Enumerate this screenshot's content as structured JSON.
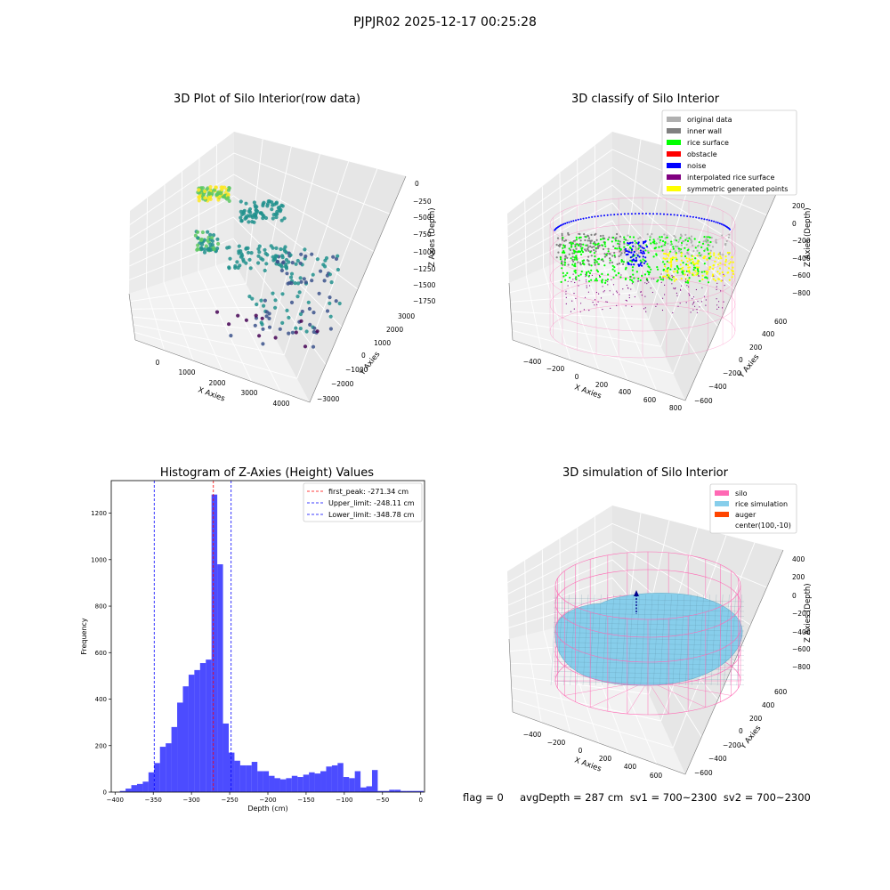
{
  "suptitle": "PJPJR02 2025-12-17 00:25:28",
  "footer": {
    "text": "flag = 0     avgDepth = 287 cm  sv1 = 700~2300  sv2 = 700~2300"
  },
  "chart_data": [
    {
      "type": "scatter",
      "projection": "3d",
      "title": "3D Plot of Silo Interior(row data)",
      "xlabel": "X Axies",
      "ylabel": "Y Axies",
      "zlabel": "Z Axies (Depth)",
      "xticks": [
        "0",
        "1000",
        "2000",
        "3000",
        "4000"
      ],
      "yticks": [
        "3000",
        "2000",
        "1000",
        "0",
        "−1000",
        "−2000",
        "−3000"
      ],
      "zticks": [
        "0",
        "−250",
        "−500",
        "−750",
        "−1000",
        "−1250",
        "−1500",
        "−1750"
      ],
      "colormap": "viridis",
      "grid": true
    },
    {
      "type": "scatter",
      "projection": "3d",
      "title": "3D classify of Silo Interior",
      "xlabel": "X Axies",
      "ylabel": "Y Axies",
      "zlabel": "Z Axies (Depth)",
      "xticks": [
        "−400",
        "−200",
        "0",
        "200",
        "400",
        "600",
        "800"
      ],
      "yticks": [
        "600",
        "400",
        "200",
        "0",
        "−200",
        "−400",
        "−600"
      ],
      "zticks": [
        "200",
        "0",
        "−200",
        "−400",
        "−600",
        "−800"
      ],
      "legend": {
        "position": "top-right",
        "items": [
          {
            "label": "original data",
            "color": "#b0b0b0"
          },
          {
            "label": "inner wall",
            "color": "#808080"
          },
          {
            "label": "rice surface",
            "color": "#00ff00"
          },
          {
            "label": "obstacle",
            "color": "#ff0000"
          },
          {
            "label": "noise",
            "color": "#0000ff"
          },
          {
            "label": "interpolated rice surface",
            "color": "#800080"
          },
          {
            "label": "symmetric generated points",
            "color": "#ffff00"
          }
        ]
      },
      "grid": true
    },
    {
      "type": "bar",
      "title": "Histogram of Z-Axies (Height) Values",
      "xlabel": "Depth (cm)",
      "ylabel": "Frequency",
      "xlim": [
        -405,
        5
      ],
      "ylim": [
        0,
        1340
      ],
      "xticks": [
        -400,
        -350,
        -300,
        -250,
        -200,
        -150,
        -100,
        -50,
        0
      ],
      "yticks": [
        0,
        200,
        400,
        600,
        800,
        1000,
        1200
      ],
      "bin_width": 7.5,
      "bin_starts": [
        -393.75,
        -386.25,
        -378.75,
        -371.25,
        -363.75,
        -356.25,
        -348.75,
        -341.25,
        -333.75,
        -326.25,
        -318.75,
        -311.25,
        -303.75,
        -296.25,
        -288.75,
        -281.25,
        -273.75,
        -266.25,
        -258.75,
        -251.25,
        -243.75,
        -236.25,
        -228.75,
        -221.25,
        -213.75,
        -206.25,
        -198.75,
        -191.25,
        -183.75,
        -176.25,
        -168.75,
        -161.25,
        -153.75,
        -146.25,
        -138.75,
        -131.25,
        -123.75,
        -116.25,
        -108.75,
        -101.25,
        -93.75,
        -86.25,
        -78.75,
        -71.25,
        -63.75,
        -56.25,
        -48.75,
        -41.25,
        -33.75,
        -26.25,
        -18.75,
        -11.25,
        -3.75
      ],
      "values": [
        5,
        15,
        30,
        35,
        45,
        85,
        125,
        195,
        210,
        280,
        385,
        455,
        505,
        525,
        555,
        570,
        1280,
        980,
        295,
        170,
        135,
        115,
        115,
        130,
        90,
        90,
        70,
        60,
        55,
        60,
        70,
        65,
        75,
        85,
        80,
        90,
        110,
        115,
        125,
        65,
        60,
        90,
        20,
        25,
        95,
        5,
        5,
        10,
        10,
        5,
        5,
        5,
        5
      ],
      "color": "#0000ff",
      "vlines": [
        {
          "label": "first_peak: -271.34 cm",
          "x": -271.34,
          "color": "#ff0000"
        },
        {
          "label": "Upper_limit: -248.11 cm",
          "x": -248.11,
          "color": "#0000ff"
        },
        {
          "label": "Lower_limit: -348.78 cm",
          "x": -348.78,
          "color": "#0000ff"
        }
      ],
      "legend": "top-right",
      "grid": false
    },
    {
      "type": "surface",
      "projection": "3d",
      "title": "3D simulation of Silo Interior",
      "xlabel": "X Axies",
      "ylabel": "Y Axies",
      "zlabel": "Z Axies (Depth)",
      "xticks": [
        "−400",
        "−200",
        "0",
        "200",
        "400",
        "600"
      ],
      "yticks": [
        "600",
        "400",
        "200",
        "0",
        "−200",
        "−400",
        "−600"
      ],
      "zticks": [
        "400",
        "200",
        "0",
        "−200",
        "−400",
        "−600",
        "−800"
      ],
      "legend": {
        "position": "top-right",
        "items": [
          {
            "label": "silo",
            "color": "#ff69b4"
          },
          {
            "label": "rice simulation",
            "color": "#87ceeb"
          },
          {
            "label": "auger",
            "color": "#ff4500"
          },
          {
            "label": "center(100,-10)",
            "color": ""
          }
        ]
      },
      "grid": true
    }
  ]
}
